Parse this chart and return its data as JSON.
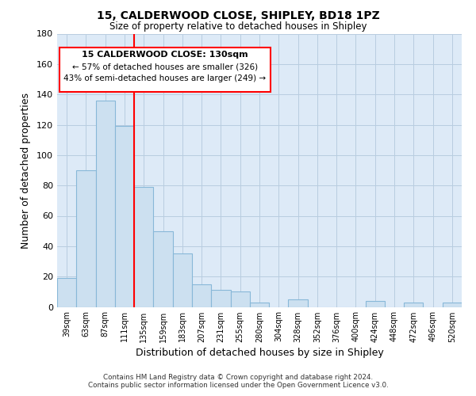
{
  "title_line1": "15, CALDERWOOD CLOSE, SHIPLEY, BD18 1PZ",
  "title_line2": "Size of property relative to detached houses in Shipley",
  "xlabel": "Distribution of detached houses by size in Shipley",
  "ylabel": "Number of detached properties",
  "bar_color": "#cce0f0",
  "bar_edge_color": "#88b8d8",
  "categories": [
    "39sqm",
    "63sqm",
    "87sqm",
    "111sqm",
    "135sqm",
    "159sqm",
    "183sqm",
    "207sqm",
    "231sqm",
    "255sqm",
    "280sqm",
    "304sqm",
    "328sqm",
    "352sqm",
    "376sqm",
    "400sqm",
    "424sqm",
    "448sqm",
    "472sqm",
    "496sqm",
    "520sqm"
  ],
  "values": [
    19,
    90,
    136,
    119,
    79,
    50,
    35,
    15,
    11,
    10,
    3,
    0,
    5,
    0,
    0,
    0,
    4,
    0,
    3,
    0,
    3
  ],
  "ylim": [
    0,
    180
  ],
  "yticks": [
    0,
    20,
    40,
    60,
    80,
    100,
    120,
    140,
    160,
    180
  ],
  "redline_idx": 3.5,
  "annotation_title": "15 CALDERWOOD CLOSE: 130sqm",
  "annotation_line2": "← 57% of detached houses are smaller (326)",
  "annotation_line3": "43% of semi-detached houses are larger (249) →",
  "footer_line1": "Contains HM Land Registry data © Crown copyright and database right 2024.",
  "footer_line2": "Contains public sector information licensed under the Open Government Licence v3.0.",
  "background_color": "#ffffff",
  "plot_bg_color": "#ddeaf7",
  "grid_color": "#b8cde0"
}
